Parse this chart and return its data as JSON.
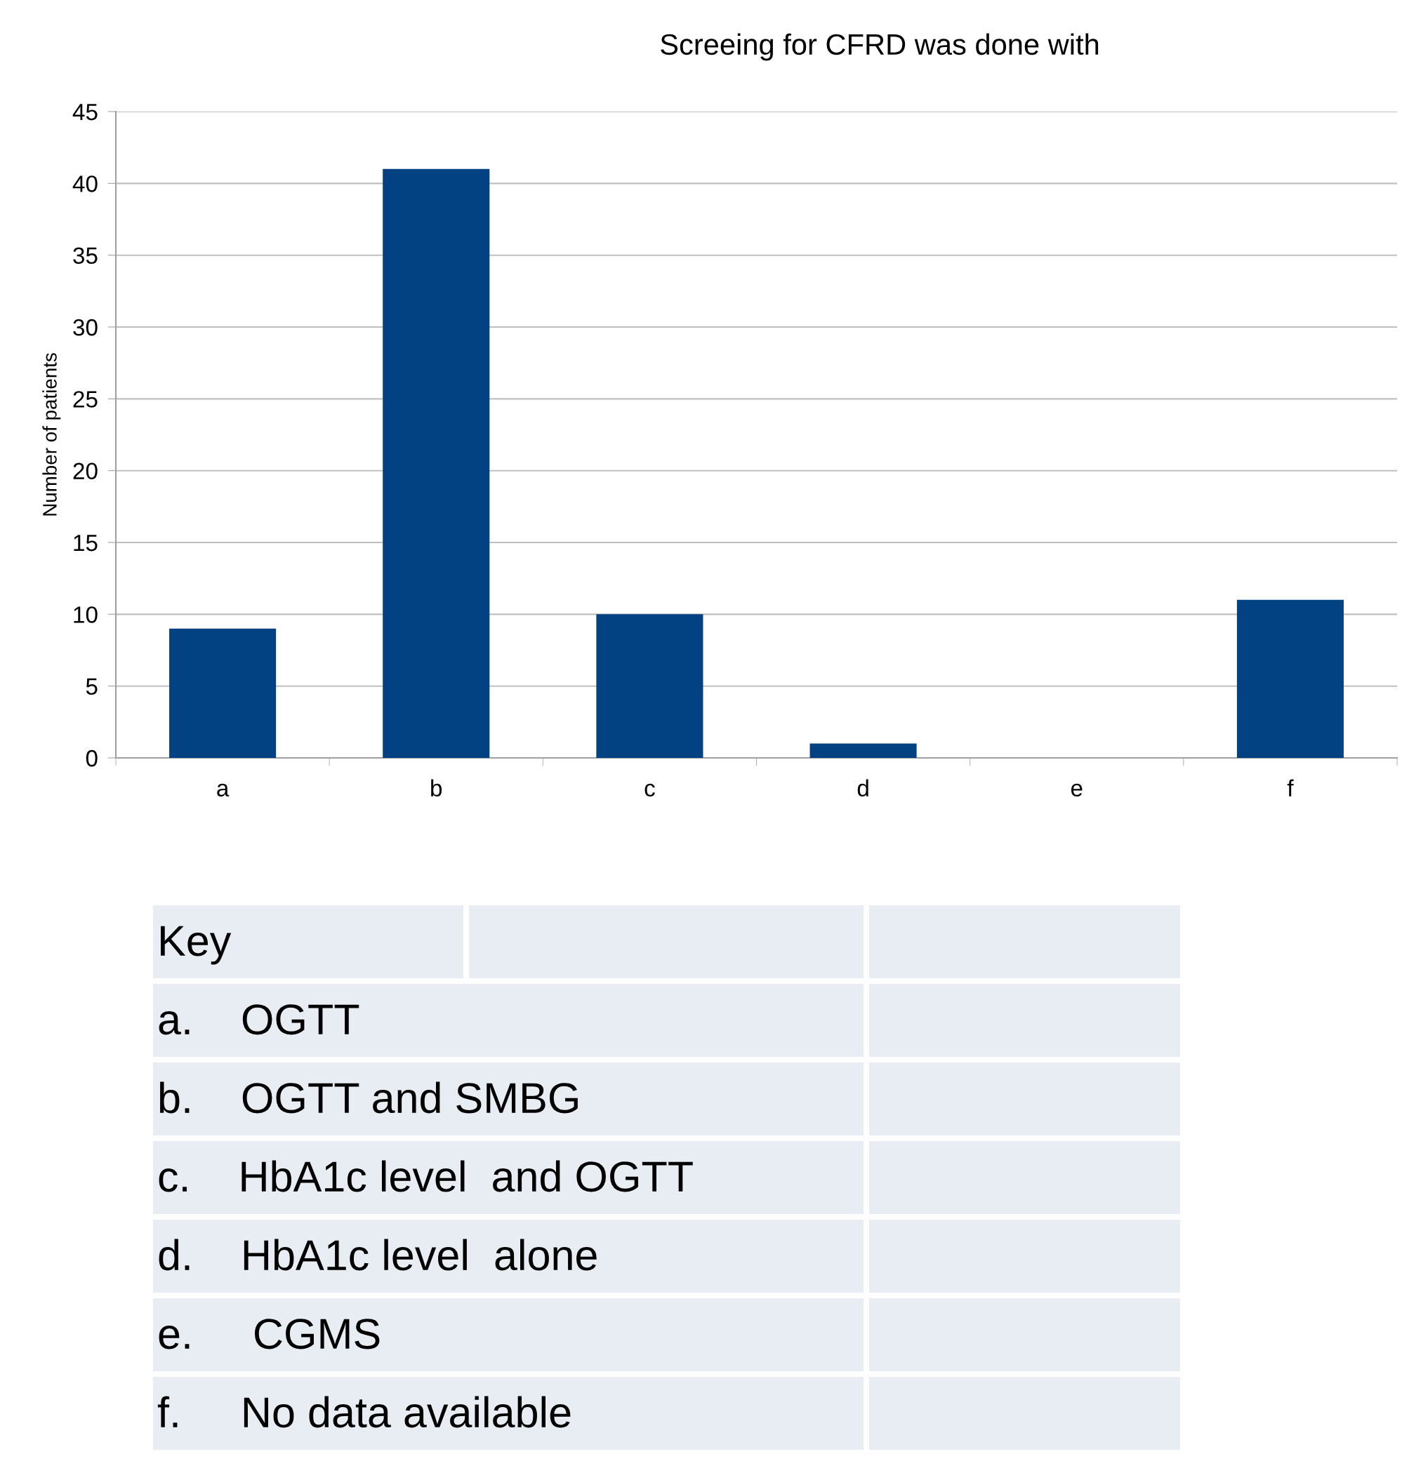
{
  "chart_data": {
    "type": "bar",
    "title": "Screeing for CFRD was done with",
    "ylabel": "Number of patients",
    "categories": [
      "a",
      "b",
      "c",
      "d",
      "e",
      "f"
    ],
    "values": [
      9,
      41,
      10,
      1,
      0,
      11
    ],
    "color": "#024283",
    "ylim": [
      0,
      45
    ],
    "yticks": [
      0,
      5,
      10,
      15,
      20,
      25,
      30,
      35,
      40,
      45
    ],
    "grid": "y",
    "annotations": [
      "Key",
      "a.    OGTT",
      "b.    OGTT and SMBG",
      "c.    HbA1c level  and OGTT",
      "d.    HbA1c level  alone",
      "e.     CGMS",
      "f.     No data available"
    ]
  }
}
